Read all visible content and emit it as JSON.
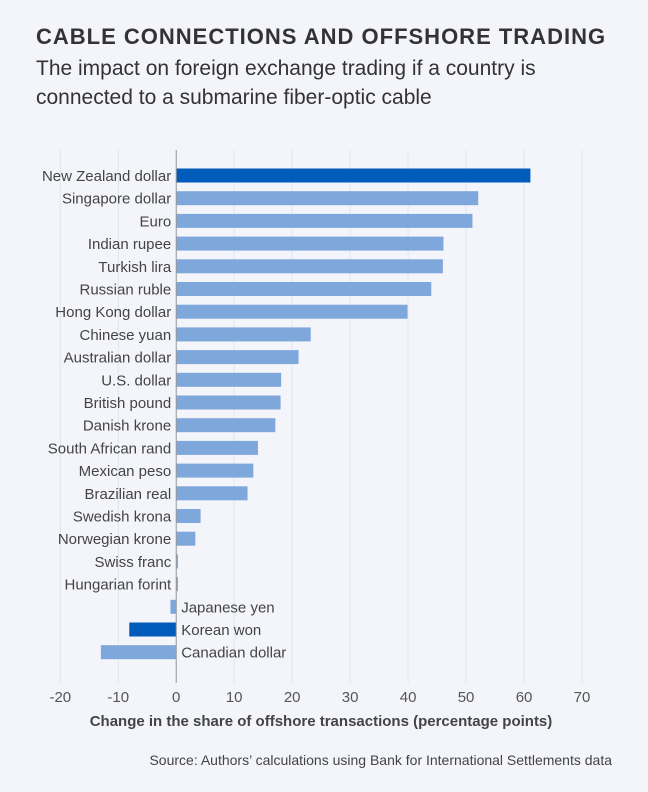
{
  "title": "CABLE CONNECTIONS AND OFFSHORE TRADING",
  "subtitle": "The impact on foreign exchange trading if a country is connected to a submarine fiber-optic cable",
  "source": "Source: Authors’ calculations using Bank for International Settlements data",
  "chart_data": {
    "type": "bar",
    "orientation": "horizontal",
    "title": "CABLE CONNECTIONS AND OFFSHORE TRADING",
    "xlabel": "Change in the share of offshore transactions (percentage points)",
    "ylabel": "",
    "xlim": [
      -20,
      70
    ],
    "xticks": [
      -20,
      -10,
      0,
      10,
      20,
      30,
      40,
      50,
      60,
      70
    ],
    "grid": true,
    "categories": [
      "New Zealand dollar",
      "Singapore dollar",
      "Euro",
      "Indian rupee",
      "Turkish lira",
      "Russian ruble",
      "Hong Kong dollar",
      "Chinese yuan",
      "Australian dollar",
      "U.S. dollar",
      "British pound",
      "Danish krone",
      "South African rand",
      "Mexican peso",
      "Brazilian real",
      "Swedish krona",
      "Norwegian krone",
      "Swiss franc",
      "Hungarian forint",
      "Japanese yen",
      "Korean won",
      "Canadian dollar"
    ],
    "values": [
      61.1,
      52.1,
      51.1,
      46.1,
      46.0,
      44.0,
      39.9,
      23.2,
      21.1,
      18.1,
      18.0,
      17.1,
      14.1,
      13.3,
      12.3,
      4.2,
      3.3,
      0.3,
      0.3,
      -1.0,
      -8.1,
      -13.0
    ],
    "highlighted": [
      "New Zealand dollar",
      "Korean won"
    ],
    "colors": {
      "highlight": "#005bbb",
      "default": "#7ea8dc",
      "grid": "#e2e5ee",
      "axis": "#999999"
    }
  }
}
